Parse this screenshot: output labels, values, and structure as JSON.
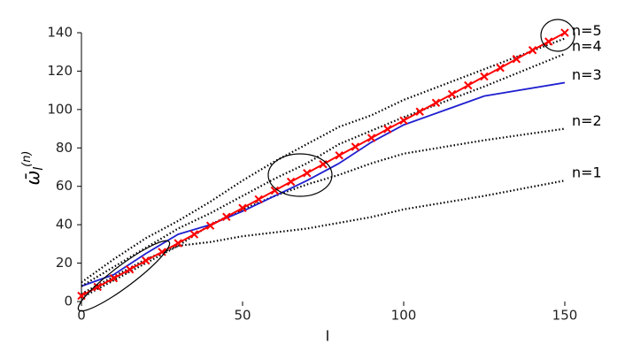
{
  "chart_data": {
    "type": "line",
    "xlabel": "l",
    "ylabel": {
      "symbol": "ω̄",
      "sub": "l",
      "sup": "(n)"
    },
    "xlim": [
      0,
      150
    ],
    "xticks": [
      0,
      50,
      100,
      150
    ],
    "ylim": [
      0,
      140
    ],
    "yticks": [
      0,
      20,
      40,
      60,
      80,
      100,
      120,
      140
    ],
    "x": [
      0,
      10,
      20,
      30,
      40,
      50,
      60,
      70,
      80,
      90,
      100,
      125,
      150
    ],
    "series": [
      {
        "name": "n=1",
        "color": "#000000",
        "style": "dotted",
        "values": [
          2,
          11,
          20,
          29,
          31,
          34,
          36,
          38,
          41,
          44,
          48,
          55,
          63
        ]
      },
      {
        "name": "n=2",
        "color": "#000000",
        "style": "dotted",
        "values": [
          4,
          13,
          22,
          29,
          40,
          48,
          55,
          61,
          66,
          72,
          77,
          84,
          90
        ]
      },
      {
        "name": "n=3",
        "color": "#1f1fd0",
        "style": "solid",
        "values": [
          8,
          14,
          25,
          35,
          40,
          47,
          55,
          63,
          72,
          83,
          92,
          107,
          114
        ]
      },
      {
        "name": "n=4",
        "color": "#000000",
        "style": "dotted",
        "values": [
          8,
          18,
          28,
          38,
          46,
          55,
          64,
          72,
          82,
          89,
          96,
          112,
          129
        ]
      },
      {
        "name": "n=5",
        "color": "#000000",
        "style": "dotted",
        "values": [
          10,
          22,
          33,
          42,
          52,
          63,
          73,
          82,
          91,
          97,
          105,
          121,
          137
        ]
      },
      {
        "color": "#ff0000",
        "style": "cross",
        "x": [
          0,
          5,
          10,
          15,
          20,
          25,
          30,
          35,
          40,
          45,
          50,
          55,
          60,
          65,
          70,
          75,
          80,
          85,
          90,
          95,
          100,
          105,
          110,
          115,
          120,
          125,
          130,
          135,
          140,
          145,
          150
        ],
        "values": [
          3,
          7.6,
          12.1,
          16.7,
          21.3,
          25.8,
          30.4,
          35.0,
          39.5,
          44.1,
          48.7,
          53.2,
          57.8,
          62.4,
          66.9,
          71.5,
          76.1,
          80.6,
          85.2,
          89.8,
          94.3,
          98.9,
          103.5,
          108.0,
          112.6,
          117.2,
          121.7,
          126.3,
          130.9,
          135.4,
          140.0
        ]
      }
    ]
  }
}
